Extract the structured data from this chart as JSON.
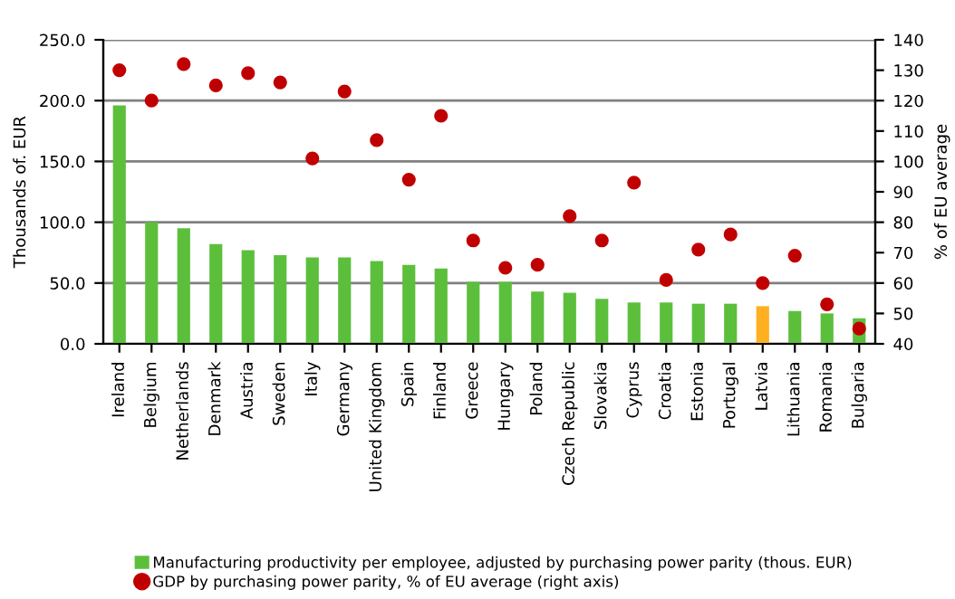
{
  "chart_data": {
    "type": "bar",
    "ylabel": "Thousands of. EUR",
    "y2label": "% of EU average",
    "categories": [
      "Ireland",
      "Belgium",
      "Netherlands",
      "Denmark",
      "Austria",
      "Sweden",
      "Italy",
      "Germany",
      "United Kingdom",
      "Spain",
      "Finland",
      "Greece",
      "Hungary",
      "Poland",
      "Czech Republic",
      "Slovakia",
      "Cyprus",
      "Croatia",
      "Estonia",
      "Portugal",
      "Latvia",
      "Lithuania",
      "Romania",
      "Bulgaria"
    ],
    "series": [
      {
        "name": "Manufacturing productivity per employee, adjusted by purchasing power parity (thous. EUR)",
        "color": "#5cbf3c",
        "colors": [
          "#5cbf3c",
          "#5cbf3c",
          "#5cbf3c",
          "#5cbf3c",
          "#5cbf3c",
          "#5cbf3c",
          "#5cbf3c",
          "#5cbf3c",
          "#5cbf3c",
          "#5cbf3c",
          "#5cbf3c",
          "#5cbf3c",
          "#5cbf3c",
          "#5cbf3c",
          "#5cbf3c",
          "#5cbf3c",
          "#5cbf3c",
          "#5cbf3c",
          "#5cbf3c",
          "#5cbf3c",
          "#ffb020",
          "#5cbf3c",
          "#5cbf3c",
          "#5cbf3c"
        ],
        "values": [
          196,
          100,
          95,
          82,
          77,
          73,
          71,
          71,
          68,
          65,
          62,
          51,
          51,
          43,
          42,
          37,
          34,
          34,
          33,
          33,
          31,
          27,
          25,
          21
        ]
      },
      {
        "name": "GDP by purchasing power parity, % of EU average (right axis)",
        "type": "scatter",
        "axis": "y2",
        "color": "#c00000",
        "marker": "circle",
        "values": [
          130,
          120,
          132,
          125,
          129,
          126,
          101,
          123,
          107,
          94,
          115,
          74,
          65,
          66,
          82,
          74,
          93,
          61,
          71,
          76,
          60,
          69,
          53,
          45
        ]
      }
    ],
    "ylim": [
      0,
      250
    ],
    "yticks": [
      {
        "value": 0,
        "label": "0.0"
      },
      {
        "value": 50,
        "label": "50.0"
      },
      {
        "value": 100,
        "label": "100.0"
      },
      {
        "value": 150,
        "label": "150.0"
      },
      {
        "value": 200,
        "label": "200.0"
      },
      {
        "value": 250,
        "label": "250.0"
      }
    ],
    "y2lim": [
      40,
      140
    ],
    "y2ticks": [
      40,
      50,
      60,
      70,
      80,
      90,
      100,
      110,
      120,
      130,
      140
    ],
    "grid": "y",
    "legend": "bottom"
  }
}
